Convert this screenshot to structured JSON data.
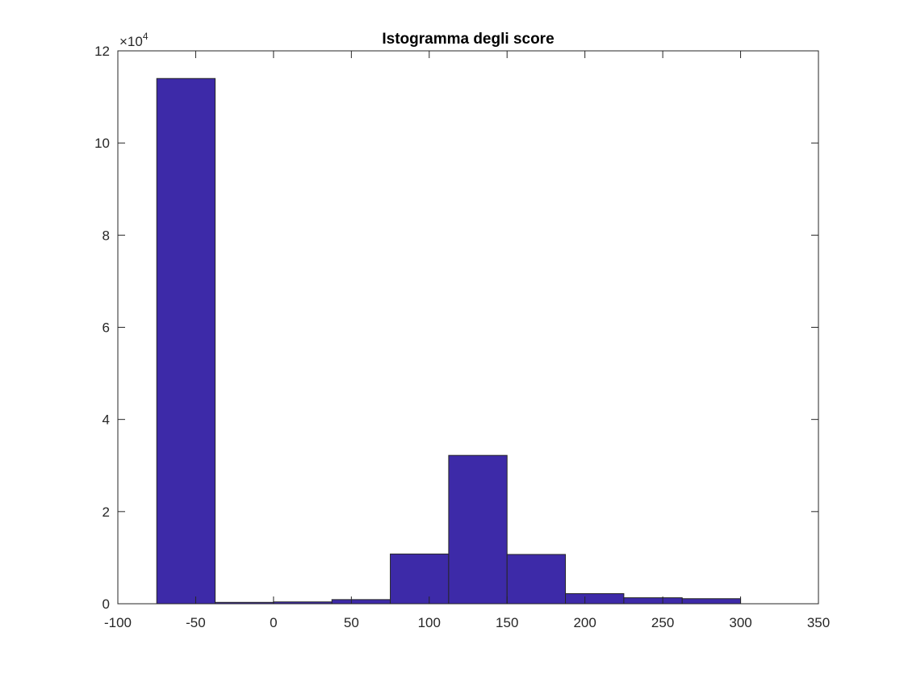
{
  "chart_data": {
    "type": "bar",
    "title": "Istogramma degli score",
    "xlabel": "",
    "ylabel": "",
    "xlim": [
      -100,
      350
    ],
    "ylim": [
      0,
      120000
    ],
    "x_ticks": [
      -100,
      -50,
      0,
      50,
      100,
      150,
      200,
      250,
      300,
      350
    ],
    "x_tick_labels": [
      "-100",
      "-50",
      "0",
      "50",
      "100",
      "150",
      "200",
      "250",
      "300",
      "350"
    ],
    "y_ticks": [
      0,
      20000,
      40000,
      60000,
      80000,
      100000,
      120000
    ],
    "y_tick_labels": [
      "0",
      "2",
      "4",
      "6",
      "8",
      "10",
      "12"
    ],
    "y_exponent_prefix": "×10",
    "y_exponent_power": "4",
    "bin_edges": [
      -75,
      -37.5,
      0,
      37.5,
      75,
      112.5,
      150,
      187.5,
      225,
      262.5,
      300
    ],
    "values": [
      114000,
      300,
      400,
      900,
      10800,
      32200,
      10700,
      2200,
      1300,
      1100
    ],
    "grid": false,
    "legend": "none",
    "bar_color": "#3d2aa8",
    "bar_edge_color": "#262626",
    "axis_color": "#262626"
  }
}
